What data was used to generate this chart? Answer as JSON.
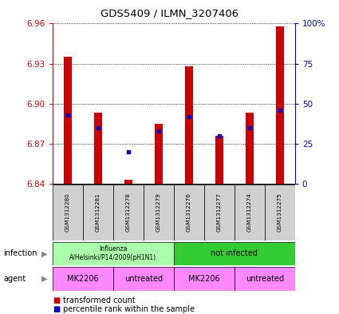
{
  "title": "GDS5409 / ILMN_3207406",
  "samples": [
    "GSM1312280",
    "GSM1312281",
    "GSM1312278",
    "GSM1312279",
    "GSM1312276",
    "GSM1312277",
    "GSM1312274",
    "GSM1312275"
  ],
  "transformed_count": [
    6.935,
    6.893,
    6.843,
    6.885,
    6.928,
    6.876,
    6.893,
    6.958
  ],
  "percentile_rank": [
    43,
    35,
    20,
    33,
    42,
    30,
    35,
    46
  ],
  "ylim_left": [
    6.84,
    6.96
  ],
  "yticks_left": [
    6.84,
    6.87,
    6.9,
    6.93,
    6.96
  ],
  "yticks_right": [
    0,
    25,
    50,
    75,
    100
  ],
  "bar_color": "#cc0000",
  "dot_color": "#0000cc",
  "base_value": 6.84,
  "left_axis_color": "#cc0000",
  "right_axis_color": "#0000cc",
  "bar_width": 0.25,
  "figsize": [
    4.25,
    3.93
  ],
  "dpi": 100,
  "infection_light_color": "#aaffaa",
  "infection_dark_color": "#33cc33",
  "agent_color": "#ff88ff",
  "sample_box_color": "#d0d0d0"
}
